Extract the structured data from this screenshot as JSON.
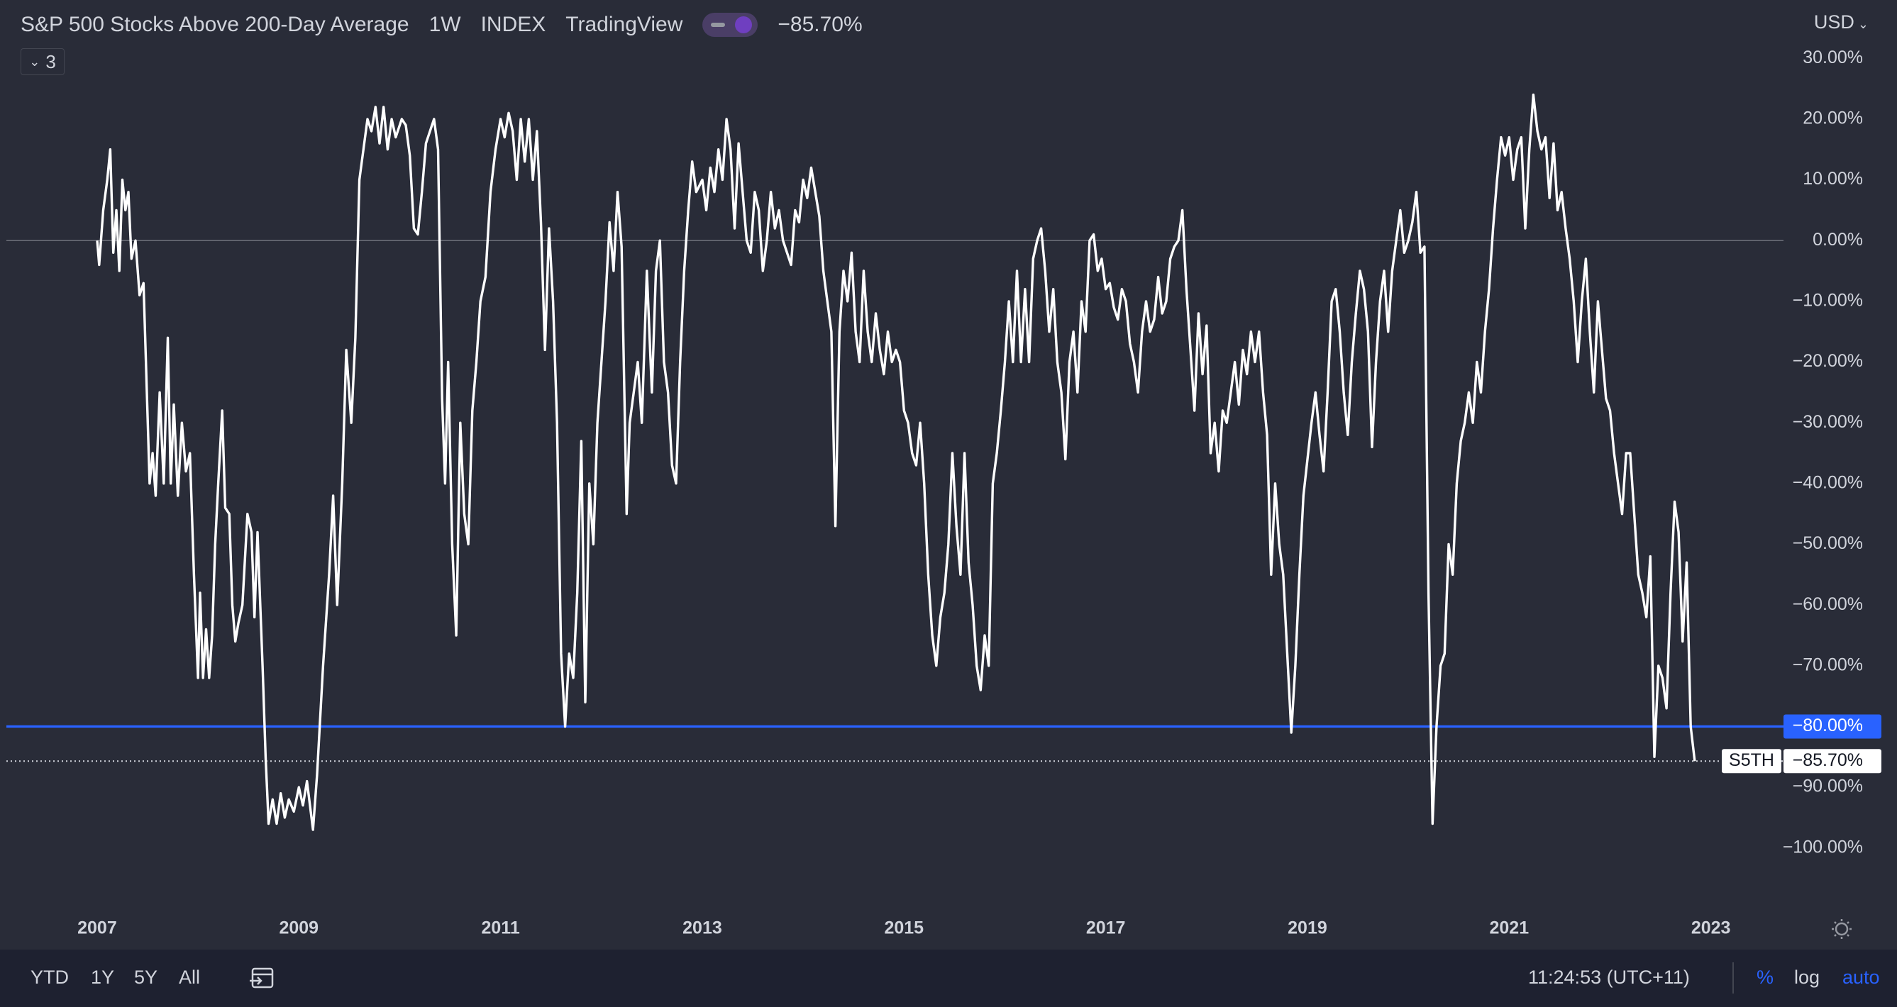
{
  "header": {
    "title": "S&P 500 Stocks Above 200-Day Average",
    "interval": "1W",
    "exchange": "INDEX",
    "source": "TradingView",
    "change": "−85.70%",
    "indicators_count": "3",
    "currency": "USD"
  },
  "chart_data": {
    "type": "line",
    "x": [
      2007,
      2007.02,
      2007.06,
      2007.1,
      2007.13,
      2007.16,
      2007.19,
      2007.22,
      2007.25,
      2007.28,
      2007.31,
      2007.34,
      2007.38,
      2007.42,
      2007.46,
      2007.52,
      2007.55,
      2007.58,
      2007.62,
      2007.66,
      2007.7,
      2007.73,
      2007.76,
      2007.8,
      2007.84,
      2007.88,
      2007.92,
      2007.96,
      2008,
      2008.02,
      2008.05,
      2008.08,
      2008.11,
      2008.14,
      2008.17,
      2008.2,
      2008.24,
      2008.27,
      2008.31,
      2008.34,
      2008.37,
      2008.4,
      2008.44,
      2008.49,
      2008.53,
      2008.56,
      2008.59,
      2008.64,
      2008.67,
      2008.7,
      2008.74,
      2008.78,
      2008.82,
      2008.86,
      2008.9,
      2008.95,
      2009,
      2009.04,
      2009.08,
      2009.14,
      2009.18,
      2009.24,
      2009.3,
      2009.34,
      2009.38,
      2009.43,
      2009.47,
      2009.52,
      2009.56,
      2009.6,
      2009.64,
      2009.68,
      2009.72,
      2009.76,
      2009.8,
      2009.84,
      2009.88,
      2009.92,
      2009.96,
      2010.02,
      2010.06,
      2010.1,
      2010.14,
      2010.18,
      2010.22,
      2010.26,
      2010.3,
      2010.34,
      2010.38,
      2010.42,
      2010.45,
      2010.48,
      2010.52,
      2010.56,
      2010.6,
      2010.64,
      2010.68,
      2010.72,
      2010.76,
      2010.8,
      2010.85,
      2010.9,
      2010.95,
      2011,
      2011.04,
      2011.08,
      2011.12,
      2011.16,
      2011.2,
      2011.24,
      2011.28,
      2011.32,
      2011.36,
      2011.4,
      2011.44,
      2011.48,
      2011.52,
      2011.56,
      2011.6,
      2011.64,
      2011.68,
      2011.72,
      2011.76,
      2011.8,
      2011.84,
      2011.88,
      2011.92,
      2011.96,
      2012,
      2012.04,
      2012.08,
      2012.12,
      2012.16,
      2012.2,
      2012.25,
      2012.28,
      2012.32,
      2012.36,
      2012.4,
      2012.45,
      2012.5,
      2012.54,
      2012.58,
      2012.62,
      2012.66,
      2012.7,
      2012.74,
      2012.78,
      2012.82,
      2012.86,
      2012.9,
      2012.94,
      2013,
      2013.04,
      2013.08,
      2013.12,
      2013.16,
      2013.2,
      2013.24,
      2013.28,
      2013.32,
      2013.36,
      2013.4,
      2013.44,
      2013.48,
      2013.52,
      2013.56,
      2013.6,
      2013.64,
      2013.68,
      2013.72,
      2013.76,
      2013.8,
      2013.84,
      2013.88,
      2013.92,
      2013.96,
      2014,
      2014.04,
      2014.08,
      2014.12,
      2014.16,
      2014.2,
      2014.24,
      2014.28,
      2014.32,
      2014.36,
      2014.4,
      2014.44,
      2014.48,
      2014.52,
      2014.56,
      2014.6,
      2014.64,
      2014.68,
      2014.72,
      2014.76,
      2014.8,
      2014.84,
      2014.88,
      2014.92,
      2014.96,
      2015,
      2015.04,
      2015.08,
      2015.12,
      2015.16,
      2015.2,
      2015.24,
      2015.28,
      2015.32,
      2015.36,
      2015.4,
      2015.44,
      2015.48,
      2015.52,
      2015.56,
      2015.6,
      2015.64,
      2015.68,
      2015.72,
      2015.76,
      2015.8,
      2015.84,
      2015.88,
      2015.92,
      2015.96,
      2016,
      2016.04,
      2016.08,
      2016.12,
      2016.16,
      2016.2,
      2016.24,
      2016.28,
      2016.32,
      2016.36,
      2016.4,
      2016.44,
      2016.48,
      2016.52,
      2016.56,
      2016.6,
      2016.64,
      2016.68,
      2016.72,
      2016.76,
      2016.8,
      2016.84,
      2016.88,
      2016.92,
      2016.96,
      2017,
      2017.04,
      2017.08,
      2017.12,
      2017.16,
      2017.2,
      2017.24,
      2017.28,
      2017.32,
      2017.36,
      2017.4,
      2017.44,
      2017.48,
      2017.52,
      2017.56,
      2017.6,
      2017.64,
      2017.68,
      2017.72,
      2017.76,
      2017.8,
      2017.84,
      2017.88,
      2017.92,
      2017.96,
      2018,
      2018.04,
      2018.08,
      2018.12,
      2018.16,
      2018.2,
      2018.24,
      2018.28,
      2018.32,
      2018.36,
      2018.4,
      2018.44,
      2018.48,
      2018.52,
      2018.56,
      2018.6,
      2018.64,
      2018.68,
      2018.72,
      2018.76,
      2018.8,
      2018.84,
      2018.88,
      2018.92,
      2018.96,
      2019,
      2019.04,
      2019.08,
      2019.12,
      2019.16,
      2019.2,
      2019.24,
      2019.28,
      2019.32,
      2019.36,
      2019.4,
      2019.44,
      2019.48,
      2019.52,
      2019.56,
      2019.6,
      2019.64,
      2019.68,
      2019.72,
      2019.76,
      2019.8,
      2019.84,
      2019.88,
      2019.92,
      2019.96,
      2020,
      2020.04,
      2020.08,
      2020.12,
      2020.16,
      2020.2,
      2020.24,
      2020.28,
      2020.32,
      2020.36,
      2020.4,
      2020.44,
      2020.48,
      2020.52,
      2020.56,
      2020.6,
      2020.64,
      2020.68,
      2020.72,
      2020.76,
      2020.8,
      2020.84,
      2020.88,
      2020.92,
      2020.96,
      2021,
      2021.04,
      2021.08,
      2021.12,
      2021.16,
      2021.2,
      2021.24,
      2021.28,
      2021.32,
      2021.36,
      2021.4,
      2021.44,
      2021.48,
      2021.52,
      2021.56,
      2021.6,
      2021.64,
      2021.68,
      2021.72,
      2021.76,
      2021.8,
      2021.84,
      2021.88,
      2021.92,
      2021.96,
      2022,
      2022.04,
      2022.08,
      2022.12,
      2022.16,
      2022.2,
      2022.24,
      2022.28,
      2022.32,
      2022.36,
      2022.4,
      2022.44,
      2022.48,
      2022.52,
      2022.56,
      2022.6,
      2022.64,
      2022.68,
      2022.72,
      2022.76,
      2022.8,
      2022.84
    ],
    "series": [
      {
        "name": "S5TH",
        "color": "#ffffff",
        "values": [
          0,
          -4,
          5,
          10,
          15,
          -2,
          5,
          -5,
          10,
          5,
          8,
          -3,
          0,
          -9,
          -7,
          -40,
          -35,
          -42,
          -25,
          -40,
          -16,
          -40,
          -27,
          -42,
          -30,
          -38,
          -35,
          -55,
          -72,
          -58,
          -72,
          -64,
          -72,
          -65,
          -50,
          -40,
          -28,
          -44,
          -45,
          -60,
          -66,
          -63,
          -60,
          -45,
          -48,
          -62,
          -48,
          -70,
          -85,
          -96,
          -92,
          -96,
          -91,
          -95,
          -92,
          -94,
          -90,
          -93,
          -89,
          -97,
          -88,
          -70,
          -55,
          -42,
          -60,
          -40,
          -18,
          -30,
          -16,
          10,
          15,
          20,
          18,
          22,
          16,
          22,
          15,
          20,
          17,
          20,
          19,
          14,
          2,
          1,
          8,
          16,
          18,
          20,
          15,
          -26,
          -40,
          -20,
          -50,
          -65,
          -30,
          -45,
          -50,
          -28,
          -20,
          -10,
          -6,
          8,
          15,
          20,
          17,
          21,
          18,
          10,
          20,
          13,
          20,
          10,
          18,
          3,
          -18,
          2,
          -10,
          -30,
          -68,
          -80,
          -68,
          -72,
          -58,
          -33,
          -76,
          -40,
          -50,
          -30,
          -20,
          -10,
          3,
          -5,
          8,
          -1,
          -45,
          -30,
          -25,
          -20,
          -30,
          -5,
          -25,
          -5,
          0,
          -20,
          -25,
          -37,
          -40,
          -20,
          -5,
          5,
          13,
          8,
          10,
          5,
          12,
          8,
          15,
          10,
          20,
          15,
          2,
          16,
          8,
          0,
          -2,
          8,
          5,
          -5,
          0,
          8,
          2,
          5,
          0,
          -2,
          -4,
          5,
          3,
          10,
          7,
          12,
          8,
          4,
          -5,
          -10,
          -15,
          -47,
          -15,
          -5,
          -10,
          -2,
          -15,
          -20,
          -5,
          -15,
          -20,
          -12,
          -18,
          -22,
          -15,
          -20,
          -18,
          -20,
          -28,
          -30,
          -35,
          -37,
          -30,
          -40,
          -55,
          -65,
          -70,
          -62,
          -58,
          -50,
          -35,
          -47,
          -55,
          -35,
          -53,
          -60,
          -70,
          -74,
          -65,
          -70,
          -40,
          -35,
          -28,
          -20,
          -10,
          -20,
          -5,
          -20,
          -8,
          -20,
          -3,
          0,
          2,
          -5,
          -15,
          -8,
          -20,
          -25,
          -36,
          -20,
          -15,
          -25,
          -10,
          -15,
          0,
          1,
          -5,
          -3,
          -8,
          -7,
          -11,
          -13,
          -8,
          -10,
          -17,
          -20,
          -25,
          -15,
          -10,
          -15,
          -13,
          -6,
          -12,
          -10,
          -3,
          -1,
          0,
          5,
          -8,
          -18,
          -28,
          -12,
          -22,
          -14,
          -35,
          -30,
          -38,
          -28,
          -30,
          -25,
          -20,
          -27,
          -18,
          -22,
          -15,
          -20,
          -15,
          -25,
          -32,
          -55,
          -40,
          -50,
          -55,
          -68,
          -81,
          -70,
          -55,
          -42,
          -36,
          -30,
          -25,
          -32,
          -38,
          -25,
          -10,
          -8,
          -15,
          -25,
          -32,
          -20,
          -12,
          -5,
          -8,
          -15,
          -34,
          -20,
          -10,
          -5,
          -15,
          -5,
          0,
          5,
          -2,
          0,
          3,
          8,
          -2,
          -1,
          -58,
          -96,
          -80,
          -70,
          -68,
          -50,
          -55,
          -40,
          -33,
          -30,
          -25,
          -30,
          -20,
          -25,
          -15,
          -8,
          2,
          10,
          17,
          14,
          17,
          10,
          15,
          17,
          2,
          15,
          24,
          18,
          15,
          17,
          7,
          16,
          5,
          8,
          2,
          -3,
          -10,
          -20,
          -10,
          -3,
          -15,
          -25,
          -10,
          -18,
          -26,
          -28,
          -35,
          -40,
          -45,
          -35,
          -35,
          -45,
          -55,
          -58,
          -62,
          -52,
          -85,
          -70,
          -72,
          -77,
          -58,
          -43,
          -48,
          -66,
          -53,
          -80,
          -85.7
        ]
      }
    ],
    "xlim": [
      2006.1,
      2023.72
    ],
    "xticks": [
      2007,
      2009,
      2011,
      2013,
      2015,
      2017,
      2019,
      2021,
      2023
    ],
    "ylim": [
      -111,
      39.6
    ],
    "yticks": [
      {
        "value": 30,
        "label": "30.00%"
      },
      {
        "value": 20,
        "label": "20.00%"
      },
      {
        "value": 10,
        "label": "10.00%"
      },
      {
        "value": 0,
        "label": "0.00%"
      },
      {
        "value": -10,
        "label": "−10.00%"
      },
      {
        "value": -20,
        "label": "−20.00%"
      },
      {
        "value": -30,
        "label": "−30.00%"
      },
      {
        "value": -40,
        "label": "−40.00%"
      },
      {
        "value": -50,
        "label": "−50.00%"
      },
      {
        "value": -60,
        "label": "−60.00%"
      },
      {
        "value": -70,
        "label": "−70.00%"
      },
      {
        "value": -90,
        "label": "−90.00%"
      },
      {
        "value": -100,
        "label": "−100.00%"
      }
    ],
    "grid": false,
    "alert_line": {
      "value": -80,
      "label": "−80.00%",
      "color": "#2962ff"
    },
    "last_price": {
      "value": -85.7,
      "label": "−85.70%"
    }
  },
  "toolbar": {
    "ranges": [
      "YTD",
      "1Y",
      "5Y",
      "All"
    ],
    "time": "11:24:53 (UTC+11)",
    "modes": [
      "%",
      "log",
      "auto"
    ]
  }
}
